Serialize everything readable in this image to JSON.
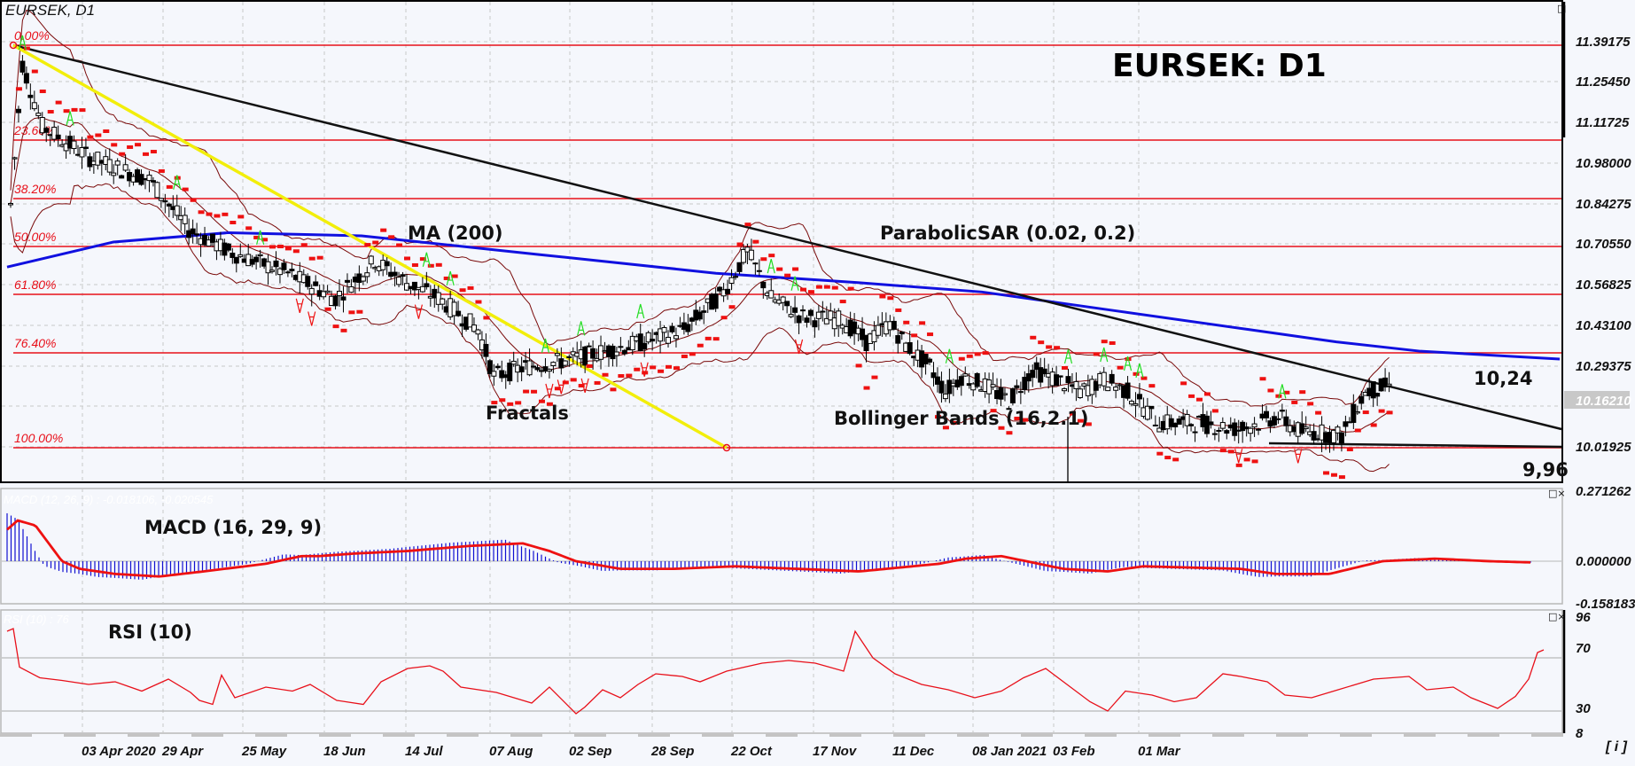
{
  "chart": {
    "symbol_label": "EURSEK, D1",
    "title": "EURSEK: D1",
    "current_price_tag": "10.16210",
    "colors": {
      "background": "#f5f7fc",
      "grid": "#c8c8c8",
      "fib": "#e8101a",
      "ma": "#1010e0",
      "bollinger": "#7a0a0a",
      "sar": "#ee1111",
      "trend_black": "#111111",
      "trend_yellow": "#f2ee0a",
      "fractal_up": "#22dd22",
      "fractal_down": "#ee1111",
      "macd_hist": "#1010d0",
      "macd_signal": "#ee1111",
      "rsi_line": "#e8101a",
      "price_tag_bg": "#c8c8c8"
    }
  },
  "chart_data": [
    {
      "type": "candlestick",
      "title": "EURSEK: D1",
      "symbol": "EURSEK",
      "timeframe": "D1",
      "y_axis_ticks": [
        "11.39175",
        "11.25450",
        "11.11725",
        "10.98000",
        "10.84275",
        "10.70550",
        "10.56825",
        "10.43100",
        "10.29375",
        "10.01925"
      ],
      "y_range": [
        9.91,
        11.45
      ],
      "current_price": "10.16210",
      "x_ticks": [
        "03 Apr 2020",
        "29 Apr",
        "25 May",
        "18 Jun",
        "14 Jul",
        "07 Aug",
        "02 Sep",
        "28 Sep",
        "22 Oct",
        "17 Nov",
        "11 Dec",
        "08 Jan 2021",
        "03 Feb",
        "01 Mar"
      ],
      "fibonacci_levels": [
        {
          "label": "0.00%",
          "value": 11.378
        },
        {
          "label": "23.60%",
          "value": 11.05
        },
        {
          "label": "38.20%",
          "value": 10.85
        },
        {
          "label": "50.00%",
          "value": 10.69
        },
        {
          "label": "61.80%",
          "value": 10.53
        },
        {
          "label": "76.40%",
          "value": 10.32
        },
        {
          "label": "100.00%",
          "value": 10.01
        }
      ],
      "annotations": [
        {
          "text": "MA (200)"
        },
        {
          "text": "ParabolicSAR (0.02, 0.2)"
        },
        {
          "text": "Fractals"
        },
        {
          "text": "Bollinger Bands (16,2.1)"
        },
        {
          "text": "10,24",
          "meaning": "resistance"
        },
        {
          "text": "9,96",
          "meaning": "support"
        }
      ],
      "ma200": {
        "label": "MA (200)",
        "points": [
          [
            0,
            10.6
          ],
          [
            120,
            10.68
          ],
          [
            250,
            10.71
          ],
          [
            400,
            10.7
          ],
          [
            600,
            10.64
          ],
          [
            800,
            10.58
          ],
          [
            960,
            10.55
          ],
          [
            1100,
            10.52
          ],
          [
            1250,
            10.46
          ],
          [
            1400,
            10.4
          ],
          [
            1500,
            10.36
          ],
          [
            1595,
            10.33
          ],
          [
            1752,
            10.305
          ]
        ]
      }
    },
    {
      "type": "macd",
      "title": "MACD (16, 29, 9)",
      "ghost_label": "MACD (12, 26, 9) : -0.018106, -0.020545",
      "y_axis_ticks": [
        "0.271262",
        "0.000000",
        "-0.158183"
      ],
      "y_range": [
        -0.158183,
        0.271262
      ]
    },
    {
      "type": "line",
      "title": "RSI (10)",
      "ghost_label": "RSI (10) : 76",
      "y_axis_ticks": [
        "96",
        "70",
        "30",
        "8"
      ],
      "y_range": [
        8,
        96
      ],
      "last_value": 76
    }
  ],
  "ui": {
    "info_button": "[ i ]",
    "pane_controls": "□×",
    "maximize": "□"
  }
}
